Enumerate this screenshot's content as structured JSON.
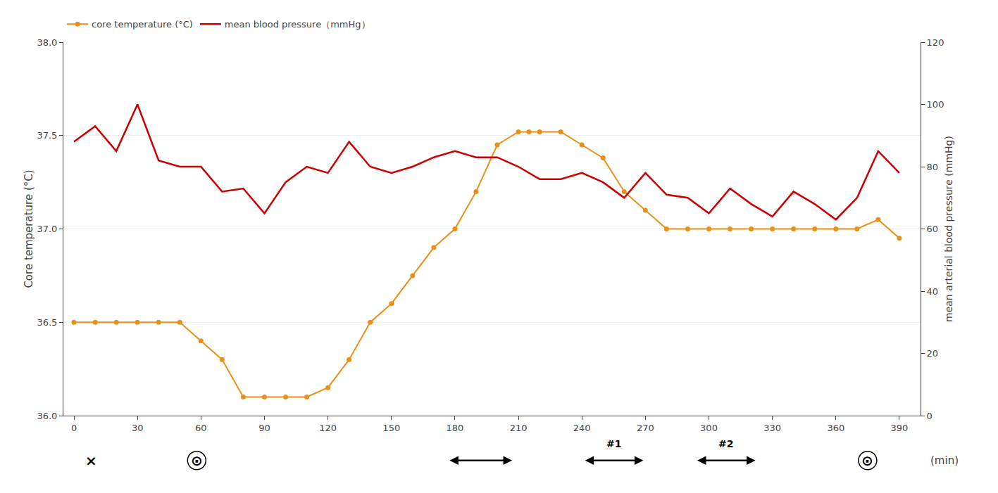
{
  "chart_data": {
    "type": "line",
    "x_label": "(min)",
    "y_label": "Core temperature (°C)",
    "y2_label": "mean arterial blood pressure (mmHg)",
    "xlim": [
      -5,
      400
    ],
    "xticks": [
      0,
      30,
      60,
      90,
      120,
      150,
      180,
      210,
      240,
      270,
      300,
      330,
      360,
      390
    ],
    "ylim": [
      36.0,
      38.0
    ],
    "yticks": [
      {
        "value": 36.0,
        "label": "36.0"
      },
      36.5,
      {
        "value": 37.0,
        "label": "37.0"
      },
      37.5,
      {
        "value": 38.0,
        "label": "38.0"
      }
    ],
    "y2lim": [
      0,
      120
    ],
    "y2ticks": [
      0,
      20,
      40,
      60,
      80,
      100,
      120
    ],
    "grid": true,
    "legend": "top",
    "series": [
      {
        "name": "core temperature (°C)",
        "color": "#E8901A",
        "marker": "circle",
        "axis": "y",
        "x": [
          0,
          10,
          20,
          30,
          40,
          50,
          60,
          70,
          80,
          90,
          100,
          110,
          120,
          130,
          140,
          150,
          160,
          170,
          180,
          190,
          200,
          210,
          215,
          220,
          230,
          240,
          250,
          260,
          270,
          280,
          290,
          300,
          310,
          320,
          330,
          340,
          350,
          360,
          370,
          380,
          390
        ],
        "values": [
          36.5,
          36.5,
          36.5,
          36.5,
          36.5,
          36.5,
          36.4,
          36.3,
          36.1,
          36.1,
          36.1,
          36.1,
          36.15,
          36.3,
          36.5,
          36.6,
          36.75,
          36.9,
          37.0,
          37.2,
          37.45,
          37.52,
          37.52,
          37.52,
          37.52,
          37.45,
          37.38,
          37.2,
          37.1,
          37.0,
          37.0,
          37.0,
          37.0,
          37.0,
          37.0,
          37.0,
          37.0,
          37.0,
          37.0,
          37.05,
          36.95
        ]
      },
      {
        "name": "mean blood pressure（mmHg）",
        "color": "#CC0000",
        "axis": "y2",
        "x": [
          0,
          10,
          20,
          30,
          40,
          50,
          60,
          70,
          80,
          90,
          100,
          110,
          120,
          130,
          140,
          150,
          160,
          170,
          180,
          190,
          200,
          210,
          220,
          230,
          240,
          250,
          260,
          270,
          280,
          290,
          300,
          310,
          320,
          330,
          340,
          350,
          360,
          370,
          380,
          390
        ],
        "values": [
          88,
          93,
          85,
          100,
          82,
          80,
          80,
          72,
          73,
          65,
          75,
          80,
          78,
          88,
          80,
          78,
          80,
          83,
          85,
          83,
          83,
          80,
          76,
          76,
          78,
          75,
          70,
          78,
          71,
          70,
          65,
          73,
          68,
          64,
          72,
          68,
          63,
          70,
          85,
          78
        ]
      }
    ],
    "annotations": [
      {
        "text": "×",
        "x": 8
      },
      {
        "text": "⊙",
        "x": 58,
        "marker": "circle-open"
      },
      {
        "text": "⊙",
        "x": 375,
        "marker": "circle-open"
      }
    ],
    "arrows": [
      {
        "x0": 177,
        "x1": 207
      },
      {
        "x0": 241,
        "x1": 269,
        "label": "#1"
      },
      {
        "x0": 294,
        "x1": 322,
        "label": "#2"
      }
    ]
  }
}
